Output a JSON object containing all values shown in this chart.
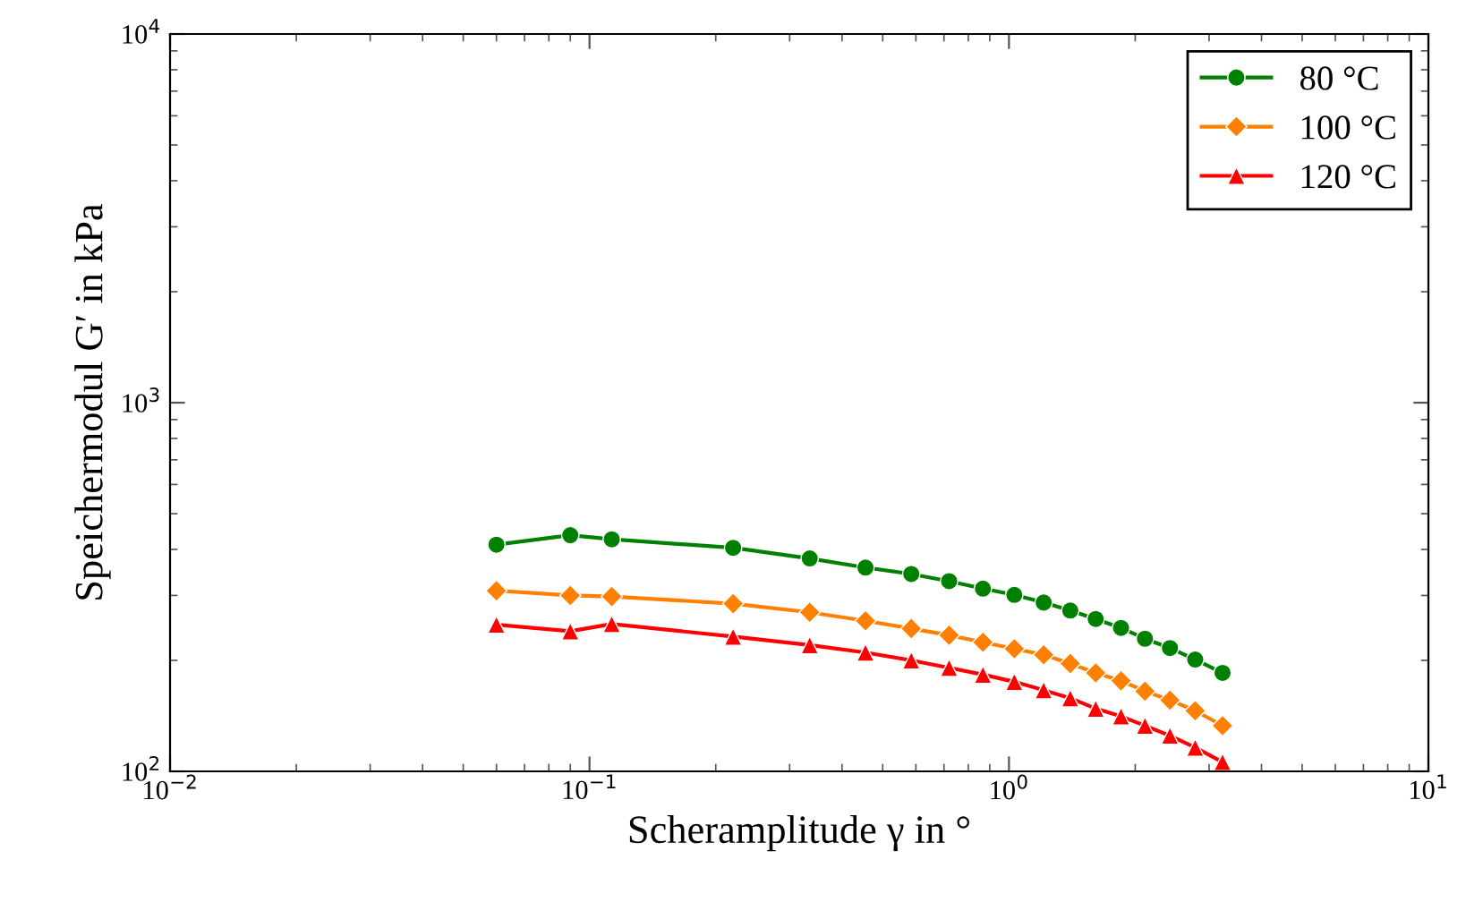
{
  "chart_data": {
    "type": "line",
    "xlabel": "Scheramplitude γ in °",
    "ylabel": "Speichermodul G′ in kPa",
    "log": "xy",
    "grid": false,
    "legend": "top right",
    "line_style": "solid",
    "x": [
      0.06,
      0.09,
      0.113,
      0.22,
      0.335,
      0.455,
      0.585,
      0.72,
      0.867,
      1.03,
      1.21,
      1.4,
      1.61,
      1.85,
      2.11,
      2.42,
      2.78,
      3.23
    ],
    "xlim": [
      0.01,
      10
    ],
    "ylim": [
      100,
      10000
    ],
    "xticks": [
      {
        "value": 0.01,
        "label": "10$^{−2}$"
      },
      {
        "value": 0.1,
        "label": "10$^{−1}$"
      },
      {
        "value": 1,
        "label": "10$^{0}$"
      },
      {
        "value": 10,
        "label": "10$^{1}$"
      }
    ],
    "yticks": [
      {
        "value": 100,
        "label": "10$^{2}$"
      },
      {
        "value": 1000,
        "label": "10$^{3}$"
      },
      {
        "value": 10000,
        "label": "10$^{4}$"
      }
    ],
    "series": [
      {
        "name": "80 °C",
        "color": "#008000",
        "marker": "circle",
        "values": [
          412,
          437,
          426,
          404,
          378,
          357,
          343,
          328,
          313,
          301,
          287,
          273,
          259,
          245,
          229,
          216,
          201,
          185
        ]
      },
      {
        "name": "100 °C",
        "color": "#ff8000",
        "marker": "diamond",
        "values": [
          309,
          300,
          298,
          285,
          270,
          256,
          244,
          234,
          224,
          215,
          207,
          196,
          185,
          176,
          165,
          156,
          146,
          133
        ]
      },
      {
        "name": "120 °C",
        "color": "#ff0000",
        "marker": "triangle",
        "values": [
          250,
          240,
          251,
          232,
          220,
          210,
          200,
          191,
          183,
          175,
          166,
          158,
          148,
          141,
          133,
          125,
          116,
          106
        ]
      }
    ]
  }
}
